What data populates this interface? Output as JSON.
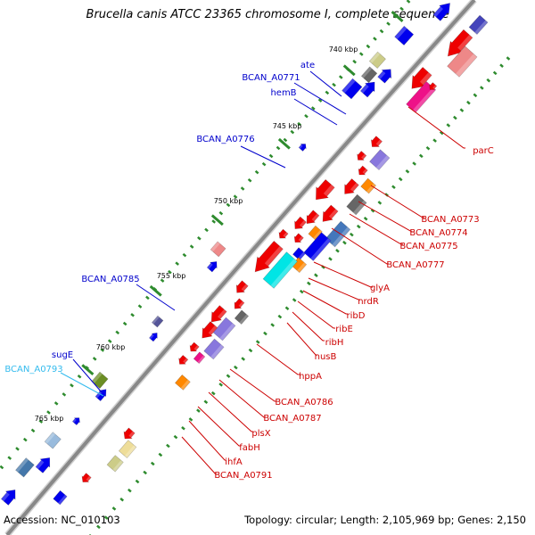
{
  "title": "Brucella canis ATCC 23365 chromosome I, complete sequence",
  "footer": {
    "accession": "Accession: NC_010103",
    "summary": "Topology: circular; Length: 2,105,969 bp; Genes: 2,150"
  },
  "colors": {
    "backbone": "#888888",
    "tick": "#2e8b2e",
    "forward_label": "#0000cc",
    "reverse_label": "#cc0000",
    "rrna_label": "#33bbee"
  },
  "scale_ticks": [
    {
      "label": "740 kbp"
    },
    {
      "label": "745 kbp"
    },
    {
      "label": "750 kbp"
    },
    {
      "label": "755 kbp"
    },
    {
      "label": "760 kbp"
    },
    {
      "label": "765 kbp"
    }
  ],
  "forward_labels": [
    {
      "name": "ate",
      "color": "#0000cc"
    },
    {
      "name": "BCAN_A0771",
      "color": "#0000cc"
    },
    {
      "name": "hemB",
      "color": "#0000cc"
    },
    {
      "name": "BCAN_A0776",
      "color": "#0000cc"
    },
    {
      "name": "BCAN_A0785",
      "color": "#0000cc"
    },
    {
      "name": "sugE",
      "color": "#0000cc"
    },
    {
      "name": "BCAN_A0793",
      "color": "#33bbee"
    }
  ],
  "reverse_labels": [
    {
      "name": "parC"
    },
    {
      "name": "BCAN_A0773"
    },
    {
      "name": "BCAN_A0774"
    },
    {
      "name": "BCAN_A0775"
    },
    {
      "name": "BCAN_A0777"
    },
    {
      "name": "glyA"
    },
    {
      "name": "nrdR"
    },
    {
      "name": "ribD"
    },
    {
      "name": "ribE"
    },
    {
      "name": "ribH"
    },
    {
      "name": "nusB"
    },
    {
      "name": "hppA"
    },
    {
      "name": "BCAN_A0786"
    },
    {
      "name": "BCAN_A0787"
    },
    {
      "name": "plsX"
    },
    {
      "name": "fabH"
    },
    {
      "name": "ihfA"
    },
    {
      "name": "BCAN_A0791"
    }
  ]
}
